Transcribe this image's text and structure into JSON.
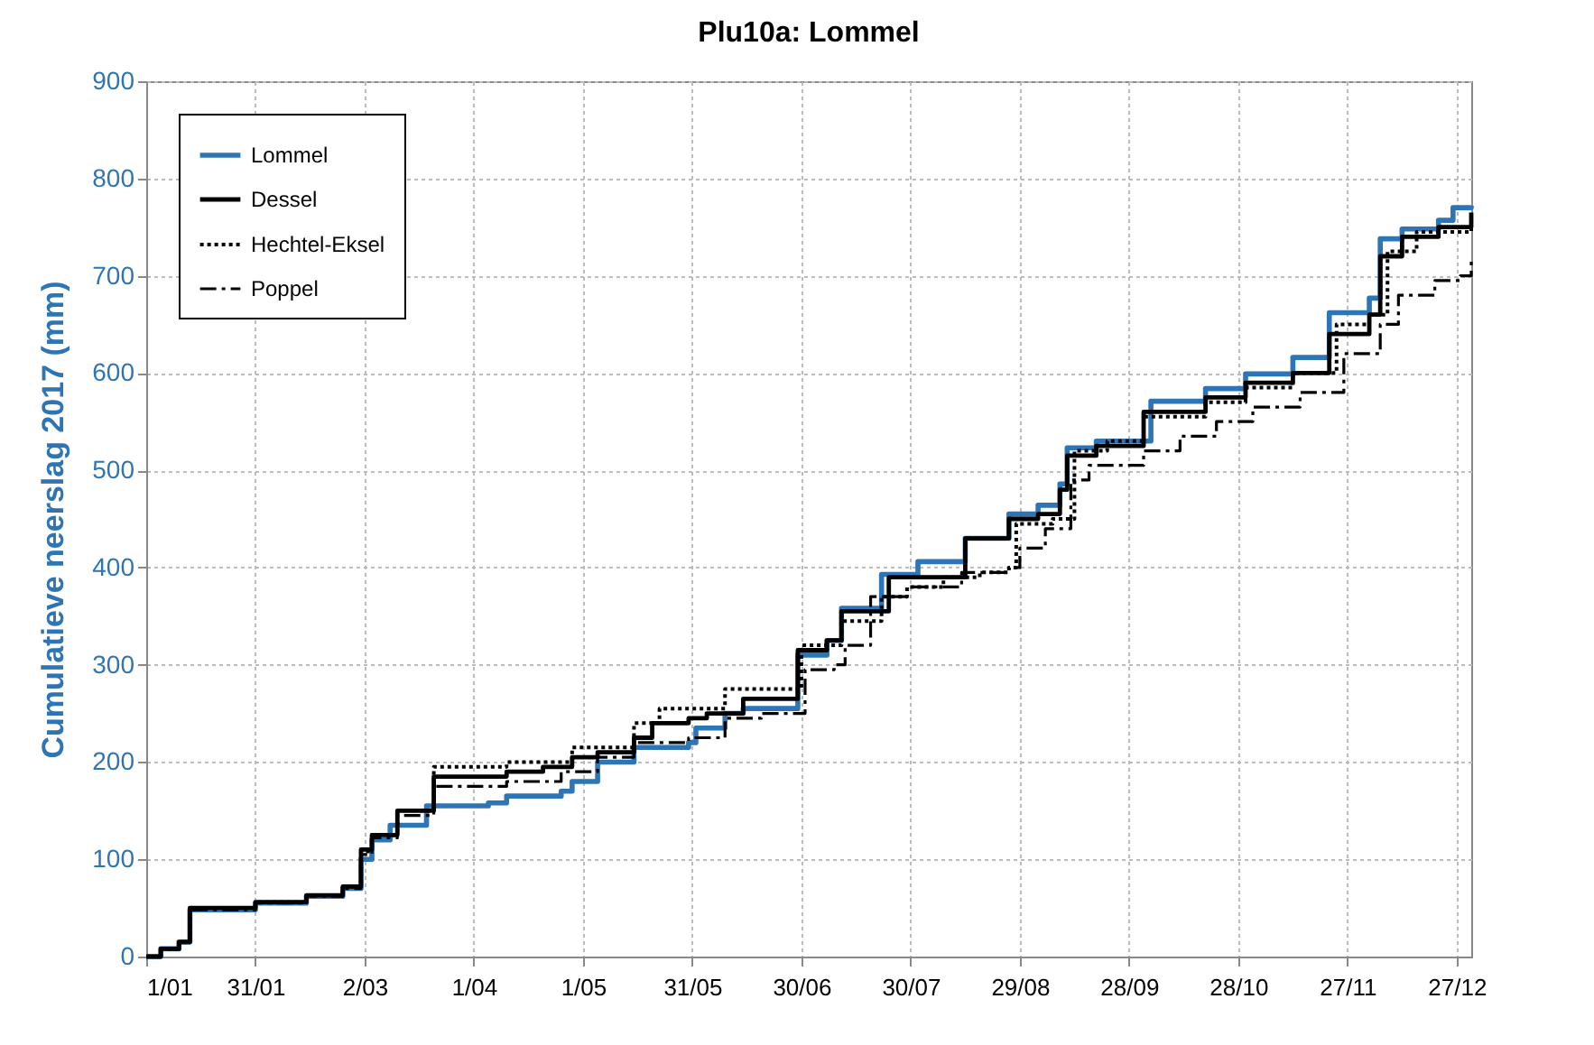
{
  "chart_data": {
    "type": "step",
    "title": "Plu10a: Lommel",
    "ylabel": "Cumulatieve neerslag 2017 (mm)",
    "xlim": [
      "--01-01",
      "--12-31"
    ],
    "ylim": [
      0,
      900
    ],
    "xticks": [
      {
        "value": "--01-01",
        "label": "1/01"
      },
      {
        "value": "--01-31",
        "label": "31/01"
      },
      {
        "value": "--03-02",
        "label": "2/03"
      },
      {
        "value": "--04-01",
        "label": "1/04"
      },
      {
        "value": "--05-01",
        "label": "1/05"
      },
      {
        "value": "--05-31",
        "label": "31/05"
      },
      {
        "value": "--06-30",
        "label": "30/06"
      },
      {
        "value": "--07-30",
        "label": "30/07"
      },
      {
        "value": "--08-29",
        "label": "29/08"
      },
      {
        "value": "--09-28",
        "label": "28/09"
      },
      {
        "value": "--10-28",
        "label": "28/10"
      },
      {
        "value": "--11-27",
        "label": "27/11"
      },
      {
        "value": "--12-27",
        "label": "27/12"
      }
    ],
    "yticks": [
      0,
      100,
      200,
      300,
      400,
      500,
      600,
      700,
      800,
      900
    ],
    "grid": true,
    "legend": "top left",
    "series": [
      {
        "name": "Lommel",
        "color": "#2e75b6",
        "line_style": "solid",
        "x": [
          "--01-01",
          "--01-05",
          "--01-10",
          "--01-13",
          "--01-30",
          "--01-31",
          "--02-14",
          "--02-24",
          "--03-01",
          "--03-04",
          "--03-09",
          "--03-19",
          "--04-05",
          "--04-10",
          "--04-25",
          "--04-28",
          "--05-05",
          "--05-15",
          "--05-30",
          "--06-01",
          "--06-09",
          "--06-14",
          "--06-29",
          "--07-07",
          "--07-11",
          "--07-22",
          "--08-01",
          "--08-14",
          "--08-26",
          "--09-03",
          "--09-09",
          "--09-11",
          "--09-19",
          "--10-04",
          "--10-19",
          "--10-30",
          "--11-12",
          "--11-22",
          "--12-03",
          "--12-06",
          "--12-12",
          "--12-22",
          "--12-26",
          "--12-31"
        ],
        "values": [
          0,
          8,
          15,
          48,
          48,
          55,
          62,
          70,
          100,
          120,
          135,
          155,
          158,
          165,
          170,
          180,
          200,
          215,
          220,
          235,
          250,
          255,
          310,
          325,
          358,
          393,
          406,
          430,
          455,
          464,
          486,
          523,
          530,
          571,
          584,
          599,
          616,
          662,
          677,
          738,
          748,
          757,
          770,
          772
        ]
      },
      {
        "name": "Dessel",
        "color": "#000000",
        "line_style": "solid",
        "x": [
          "--01-01",
          "--01-05",
          "--01-10",
          "--01-13",
          "--01-30",
          "--01-31",
          "--02-14",
          "--02-24",
          "--03-01",
          "--03-04",
          "--03-11",
          "--03-21",
          "--04-10",
          "--04-20",
          "--04-28",
          "--05-05",
          "--05-15",
          "--05-20",
          "--05-30",
          "--06-04",
          "--06-14",
          "--06-29",
          "--07-07",
          "--07-11",
          "--07-24",
          "--08-14",
          "--08-26",
          "--09-03",
          "--09-09",
          "--09-11",
          "--09-19",
          "--10-02",
          "--10-19",
          "--10-30",
          "--11-12",
          "--11-22",
          "--12-03",
          "--12-06",
          "--12-12",
          "--12-22",
          "--12-31"
        ],
        "values": [
          0,
          8,
          15,
          50,
          50,
          56,
          63,
          72,
          110,
          125,
          150,
          185,
          190,
          195,
          205,
          210,
          225,
          240,
          245,
          250,
          265,
          315,
          325,
          355,
          390,
          430,
          450,
          455,
          480,
          515,
          525,
          560,
          575,
          590,
          600,
          640,
          660,
          720,
          740,
          750,
          765
        ]
      },
      {
        "name": "Hechtel-Eksel",
        "color": "#000000",
        "line_style": "dotted",
        "x": [
          "--01-01",
          "--01-05",
          "--01-10",
          "--01-13",
          "--01-30",
          "--01-31",
          "--02-14",
          "--02-24",
          "--03-01",
          "--03-04",
          "--03-11",
          "--03-21",
          "--04-10",
          "--04-28",
          "--05-15",
          "--05-22",
          "--06-09",
          "--06-30",
          "--07-11",
          "--07-22",
          "--07-29",
          "--08-08",
          "--08-18",
          "--08-26",
          "--08-28",
          "--09-07",
          "--09-13",
          "--09-22",
          "--10-02",
          "--10-19",
          "--10-30",
          "--11-12",
          "--11-24",
          "--12-03",
          "--12-08",
          "--12-16",
          "--12-31"
        ],
        "values": [
          0,
          8,
          15,
          50,
          50,
          56,
          63,
          72,
          108,
          125,
          150,
          195,
          200,
          215,
          240,
          255,
          275,
          320,
          345,
          370,
          380,
          390,
          395,
          400,
          445,
          450,
          520,
          530,
          555,
          570,
          585,
          600,
          650,
          660,
          725,
          745,
          760
        ]
      },
      {
        "name": "Poppel",
        "color": "#000000",
        "line_style": "dashdot",
        "x": [
          "--01-01",
          "--01-05",
          "--01-10",
          "--01-13",
          "--01-30",
          "--01-31",
          "--02-14",
          "--02-24",
          "--03-01",
          "--03-04",
          "--03-11",
          "--03-21",
          "--04-10",
          "--04-25",
          "--05-05",
          "--05-15",
          "--05-30",
          "--06-09",
          "--06-19",
          "--07-01",
          "--07-09",
          "--07-12",
          "--07-19",
          "--07-29",
          "--08-13",
          "--08-26",
          "--08-29",
          "--09-05",
          "--09-12",
          "--09-17",
          "--10-02",
          "--10-12",
          "--10-22",
          "--11-01",
          "--11-14",
          "--11-26",
          "--12-06",
          "--12-11",
          "--12-21",
          "--12-28",
          "--12-31"
        ],
        "values": [
          0,
          8,
          15,
          48,
          48,
          55,
          62,
          70,
          105,
          122,
          145,
          175,
          180,
          190,
          205,
          220,
          225,
          245,
          250,
          295,
          300,
          320,
          370,
          380,
          395,
          400,
          420,
          440,
          490,
          505,
          520,
          535,
          550,
          565,
          580,
          620,
          650,
          680,
          695,
          700,
          715
        ]
      }
    ]
  }
}
